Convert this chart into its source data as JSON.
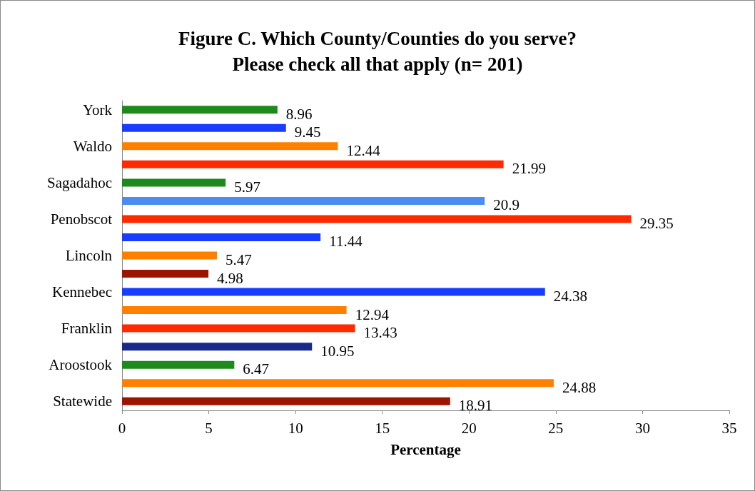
{
  "chart_data": {
    "type": "bar",
    "orientation": "horizontal",
    "title": "Figure C. Which County/Counties do you serve?\nPlease check all that apply (n= 201)",
    "xlabel": "Percentage",
    "categories": [
      "York",
      null,
      "Waldo",
      null,
      "Sagadahoc",
      null,
      "Penobscot",
      null,
      "Lincoln",
      null,
      "Kennebec",
      null,
      "Franklin",
      null,
      "Aroostook",
      null,
      "Statewide"
    ],
    "values": [
      8.96,
      9.45,
      12.44,
      21.99,
      5.97,
      20.9,
      29.35,
      11.44,
      5.47,
      4.98,
      24.38,
      12.94,
      13.43,
      10.95,
      6.47,
      24.88,
      18.91
    ],
    "colors": [
      "#1e8a1e",
      "#1a3cff",
      "#ff8000",
      "#ff2a00",
      "#1e8a1e",
      "#4a8cf0",
      "#ff2a00",
      "#1a3cff",
      "#ff8000",
      "#9c1500",
      "#1a3cff",
      "#ff8000",
      "#ff2a00",
      "#1a2a8c",
      "#1e8a1e",
      "#ff8000",
      "#9c1500"
    ],
    "xlim": [
      0,
      35
    ],
    "xticks": [
      0,
      5,
      10,
      15,
      20,
      25,
      30,
      35
    ],
    "data_labels": true
  }
}
